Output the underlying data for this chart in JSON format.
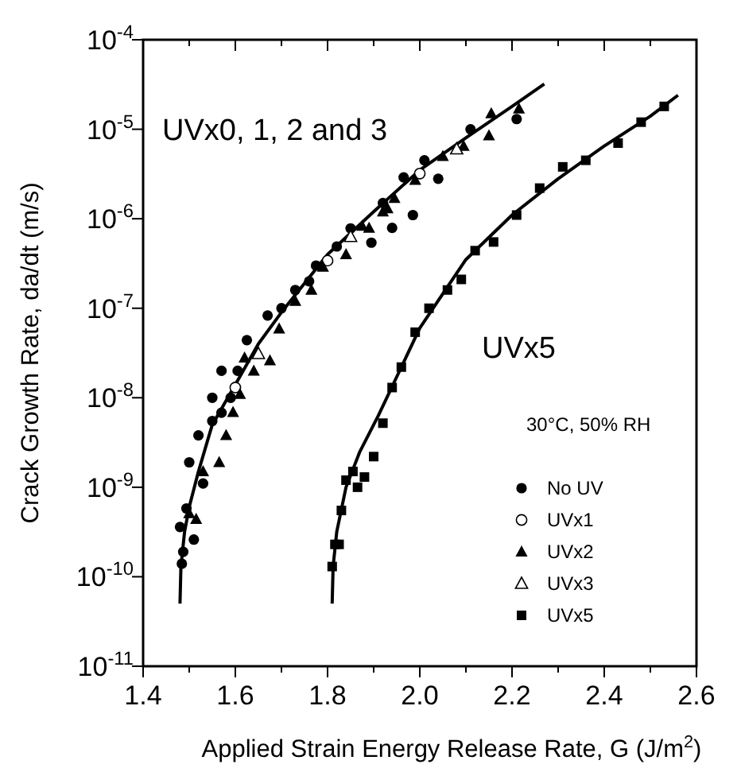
{
  "chart_data": {
    "type": "scatter",
    "xlabel": "Applied Strain Energy Release Rate, G (J/m$^{2}$)",
    "ylabel": "Crack Growth Rate, da/dt (m/s)",
    "log": "y",
    "xlim": [
      1.4,
      2.6
    ],
    "xticks": [
      1.4,
      {
        "value": 1.5,
        "label": null
      },
      1.6,
      {
        "value": 1.7,
        "label": null
      },
      1.8,
      {
        "value": 1.9,
        "label": null
      },
      {
        "value": 2.0,
        "label": "2.0"
      },
      {
        "value": 2.1,
        "label": null
      },
      2.2,
      {
        "value": 2.3,
        "label": null
      },
      2.4,
      {
        "value": 2.5,
        "label": null
      },
      2.6
    ],
    "ylim": [
      1e-11,
      0.0001
    ],
    "yticks": [
      {
        "value": 1e-11,
        "label": "10$^{-11}$"
      },
      {
        "value": 1e-10,
        "label": "10$^{-10}$"
      },
      {
        "value": 1e-09,
        "label": "10$^{-9}$"
      },
      {
        "value": 1e-08,
        "label": "10$^{-8}$"
      },
      {
        "value": 1e-07,
        "label": "10$^{-7}$"
      },
      {
        "value": 1e-06,
        "label": "10$^{-6}$"
      },
      {
        "value": 1e-05,
        "label": "10$^{-5}$"
      },
      {
        "value": 0.0001,
        "label": "10$^{-4}$"
      }
    ],
    "grid": false,
    "legend": "bottom right",
    "annotations": [
      "UVx0, 1, 2 and 3",
      "UVx5",
      "30°C, 50% RH"
    ],
    "series": [
      {
        "type": "line",
        "color": "#000000",
        "marker": "none",
        "x": [
          1.48,
          1.482,
          1.49,
          1.5,
          1.52,
          1.55,
          1.6,
          1.65,
          1.7,
          1.8,
          1.9,
          2.0,
          2.1,
          2.2,
          2.27
        ],
        "values": [
          5e-11,
          1.3e-10,
          3.2e-10,
          6e-10,
          1.5e-09,
          5e-09,
          1.4e-08,
          4e-08,
          9e-08,
          4e-07,
          1.2e-06,
          3.5e-06,
          8e-06,
          1.8e-05,
          3.2e-05
        ]
      },
      {
        "type": "line",
        "color": "#000000",
        "marker": "none",
        "x": [
          1.81,
          1.812,
          1.82,
          1.84,
          1.87,
          1.91,
          1.96,
          2.0,
          2.1,
          2.2,
          2.3,
          2.4,
          2.5,
          2.56
        ],
        "values": [
          5e-11,
          1.3e-10,
          3.2e-10,
          1e-09,
          2.5e-09,
          6.3e-09,
          2.2e-08,
          6e-08,
          3.5e-07,
          1.1e-06,
          2.8e-06,
          6.5e-06,
          1.4e-05,
          2.4e-05
        ]
      },
      {
        "name": "No UV",
        "color": "#000000",
        "marker": "circle",
        "x": [
          1.484,
          1.487,
          1.48,
          1.494,
          1.51,
          1.53,
          1.5,
          1.52,
          1.55,
          1.57,
          1.59,
          1.57,
          1.55,
          1.605,
          1.625,
          1.67,
          1.7,
          1.73,
          1.76,
          1.775,
          1.82,
          1.85,
          1.895,
          1.92,
          1.94,
          1.965,
          1.985,
          2.01,
          2.04,
          2.11,
          2.21
        ],
        "values": [
          1.4e-10,
          1.9e-10,
          3.6e-10,
          5.8e-10,
          2.6e-10,
          1.1e-09,
          1.9e-09,
          3.8e-09,
          5.5e-09,
          6.8e-09,
          1e-08,
          2e-08,
          1e-08,
          2e-08,
          4.4e-08,
          8.3e-08,
          1e-07,
          1.6e-07,
          2e-07,
          3e-07,
          4.9e-07,
          7.8e-07,
          5.4e-07,
          1.5e-06,
          7.9e-07,
          2.9e-06,
          1.1e-06,
          4.5e-06,
          2.8e-06,
          1e-05,
          1.3e-05
        ]
      },
      {
        "name": "UVx1",
        "color": "#000000",
        "marker": "circle_open",
        "x": [
          1.6,
          1.8,
          2.0
        ],
        "values": [
          1.3e-08,
          3.4e-07,
          3.2e-06
        ]
      },
      {
        "name": "UVx2",
        "color": "#000000",
        "marker": "triangle",
        "x": [
          1.515,
          1.5,
          1.53,
          1.565,
          1.58,
          1.595,
          1.61,
          1.64,
          1.675,
          1.62,
          1.695,
          1.73,
          1.765,
          1.79,
          1.84,
          1.875,
          1.92,
          1.945,
          1.99,
          2.05,
          2.095,
          2.155,
          2.15,
          2.215,
          1.93,
          1.89
        ],
        "values": [
          4.4e-10,
          5.1e-10,
          1.5e-09,
          1.9e-09,
          3.8e-09,
          6.9e-09,
          1.1e-08,
          2e-08,
          2.6e-08,
          2.8e-08,
          5.9e-08,
          1.2e-07,
          1.6e-07,
          2.9e-07,
          4e-07,
          8.3e-07,
          1.2e-06,
          1.7e-06,
          2.7e-06,
          5e-06,
          6.5e-06,
          1.5e-05,
          8.5e-06,
          1.7e-05,
          1.3e-06,
          7.9e-07
        ]
      },
      {
        "name": "UVx3",
        "color": "#000000",
        "marker": "triangle_open",
        "x": [
          1.65,
          1.85,
          2.08
        ],
        "values": [
          3.1e-08,
          6.3e-07,
          6e-06
        ]
      },
      {
        "name": "UVx5",
        "color": "#000000",
        "marker": "square",
        "x": [
          1.81,
          1.816,
          1.825,
          1.83,
          1.84,
          1.855,
          1.865,
          1.88,
          1.9,
          1.92,
          1.94,
          1.96,
          1.99,
          2.02,
          2.06,
          2.09,
          2.12,
          2.16,
          2.21,
          2.26,
          2.31,
          2.36,
          2.43,
          2.48,
          2.53
        ],
        "values": [
          1.3e-10,
          2.3e-10,
          2.3e-10,
          5.5e-10,
          1.2e-09,
          1.5e-09,
          1e-09,
          1.3e-09,
          2.2e-09,
          5.2e-09,
          1.3e-08,
          2.2e-08,
          5.4e-08,
          1e-07,
          1.6e-07,
          2.1e-07,
          4.4e-07,
          5.5e-07,
          1.1e-06,
          2.2e-06,
          3.8e-06,
          4.5e-06,
          7e-06,
          1.2e-05,
          1.8e-05
        ]
      }
    ]
  }
}
